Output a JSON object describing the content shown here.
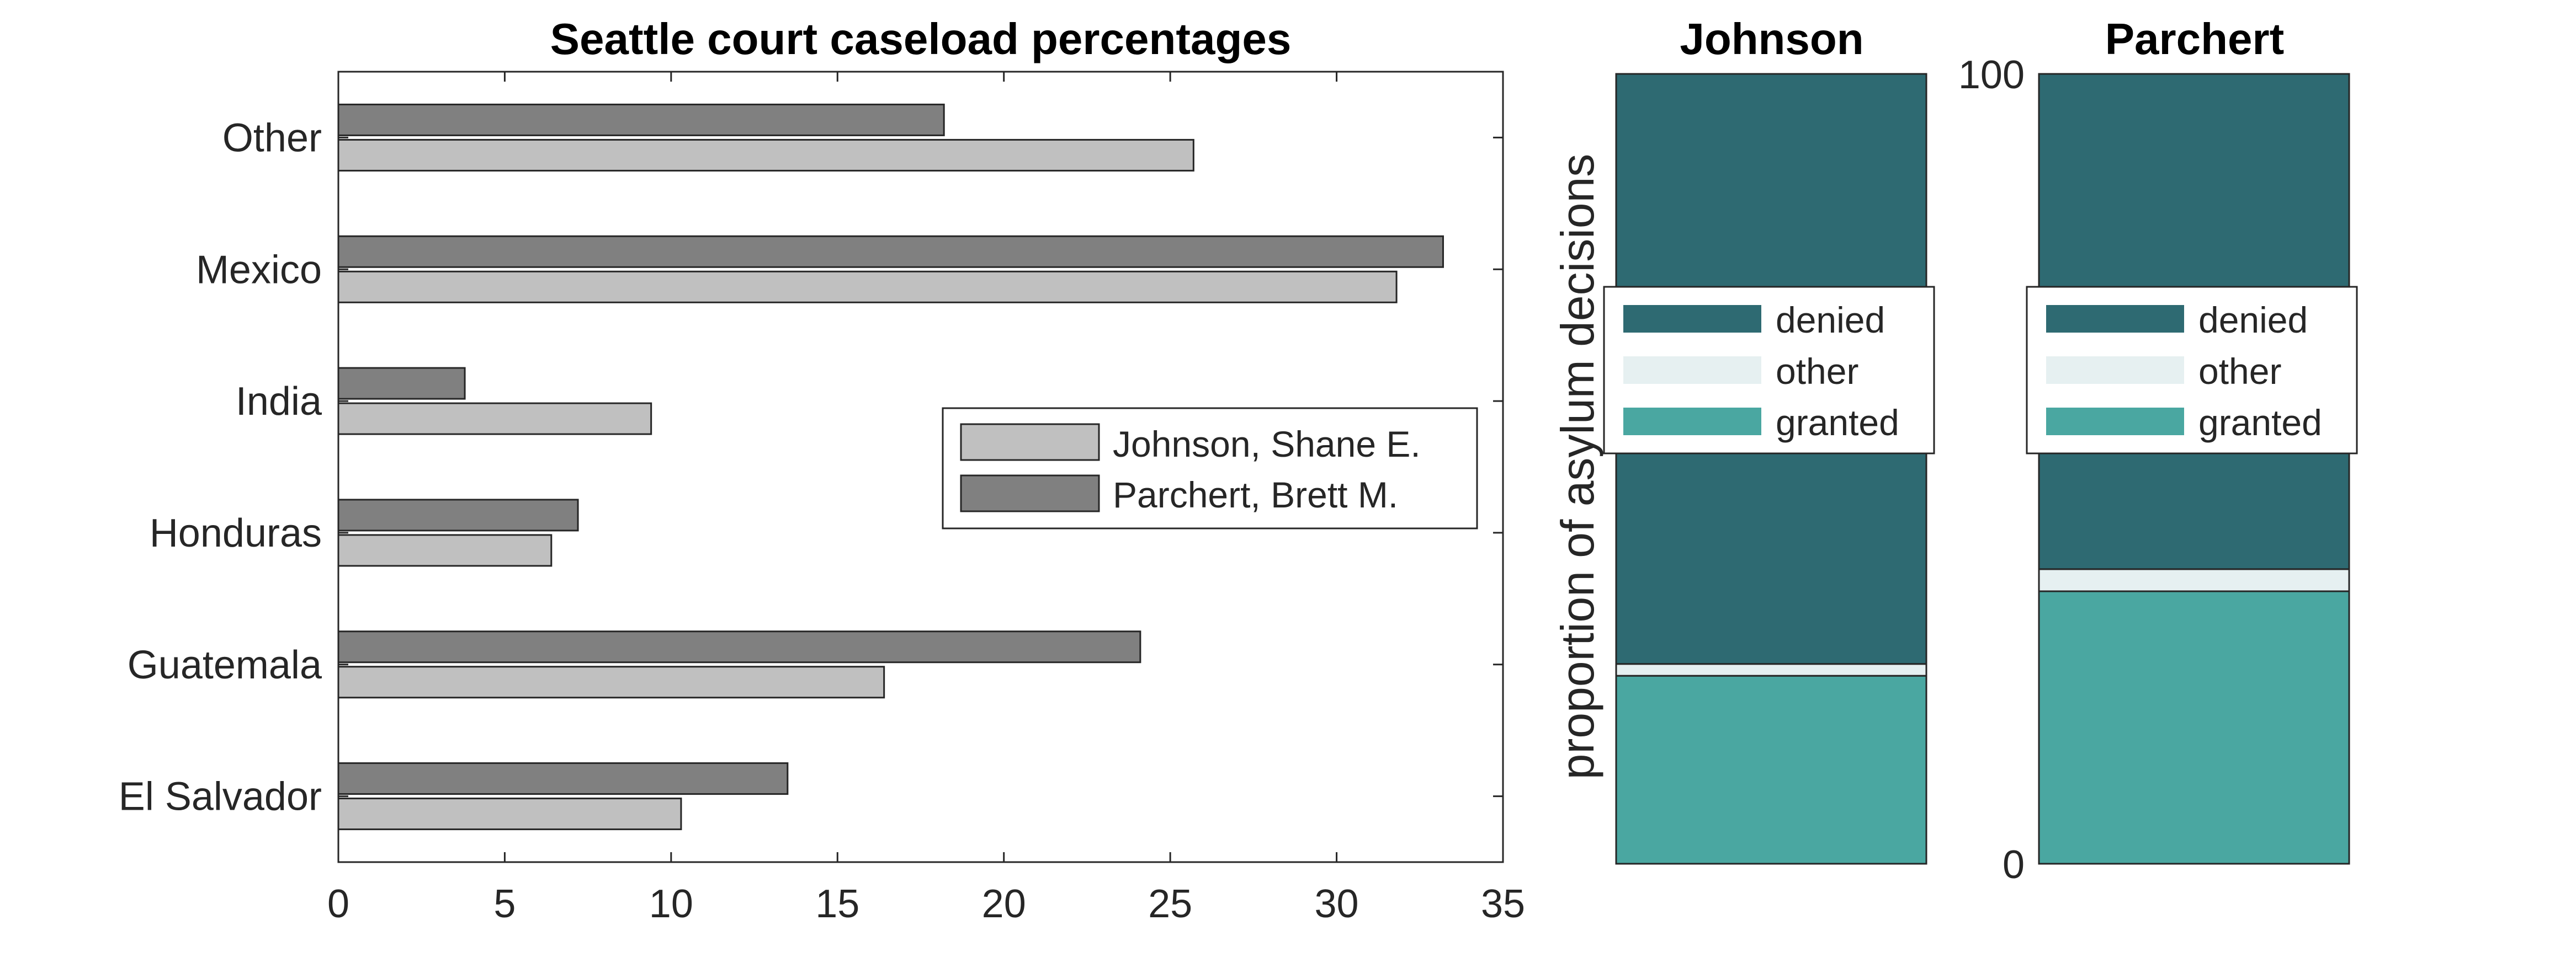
{
  "colors": {
    "johnson_bar": "#c0c0c0",
    "parchert_bar": "#808080",
    "denied": "#2e6a72",
    "other": "#e6f0f1",
    "granted": "#4aa7a1"
  },
  "chart_data": [
    {
      "type": "bar",
      "orientation": "horizontal",
      "title": "Seattle court caseload percentages",
      "xlabel": "",
      "ylabel": "",
      "categories": [
        "El Salvador",
        "Guatemala",
        "Honduras",
        "India",
        "Mexico",
        "Other"
      ],
      "series": [
        {
          "name": "Johnson, Shane E.",
          "values": [
            10.3,
            16.4,
            6.4,
            9.4,
            31.8,
            25.7
          ]
        },
        {
          "name": "Parchert, Brett M.",
          "values": [
            13.5,
            24.1,
            7.2,
            3.8,
            33.2,
            18.2
          ]
        }
      ],
      "xlim": [
        0,
        35
      ],
      "xticks": [
        0,
        5,
        10,
        15,
        20,
        25,
        30,
        35
      ],
      "legend_position": "middle-right"
    },
    {
      "type": "bar",
      "stacked": true,
      "title": "Johnson",
      "ylabel": "proportion of asylum decisions",
      "ylim": [
        0,
        100
      ],
      "segments": [
        {
          "name": "granted",
          "value": 23.8
        },
        {
          "name": "other",
          "value": 1.5
        },
        {
          "name": "denied",
          "value": 74.7
        }
      ],
      "legend": [
        "denied",
        "other",
        "granted"
      ],
      "legend_position": "upper-middle"
    },
    {
      "type": "bar",
      "stacked": true,
      "title": "Parchert",
      "ylabel": "",
      "ylim": [
        0,
        100
      ],
      "yticks": [
        0,
        100
      ],
      "segments": [
        {
          "name": "granted",
          "value": 34.5
        },
        {
          "name": "other",
          "value": 2.8
        },
        {
          "name": "denied",
          "value": 62.7
        }
      ],
      "legend": [
        "denied",
        "other",
        "granted"
      ],
      "legend_position": "upper-middle"
    }
  ]
}
